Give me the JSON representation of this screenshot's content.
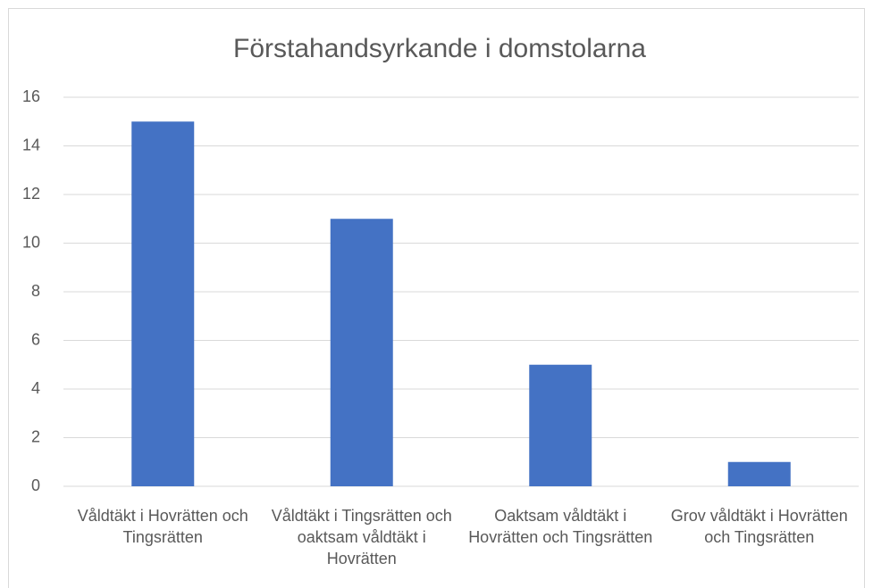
{
  "chart_data": {
    "type": "bar",
    "title": "Förstahandsyrkande i domstolarna",
    "categories": [
      "Våldtäkt i Hovrätten och Tingsrätten",
      "Våldtäkt i Tingsrätten och oaktsam våldtäkt i Hovrätten",
      "Oaktsam våldtäkt i Hovrätten och Tingsrätten",
      "Grov våldtäkt i Hovrätten och Tingsrätten"
    ],
    "values": [
      15,
      11,
      5,
      1
    ],
    "color": "#4472c4",
    "ylim": [
      0,
      16
    ],
    "yticks": [
      0,
      2,
      4,
      6,
      8,
      10,
      12,
      14,
      16
    ],
    "grid": true
  }
}
